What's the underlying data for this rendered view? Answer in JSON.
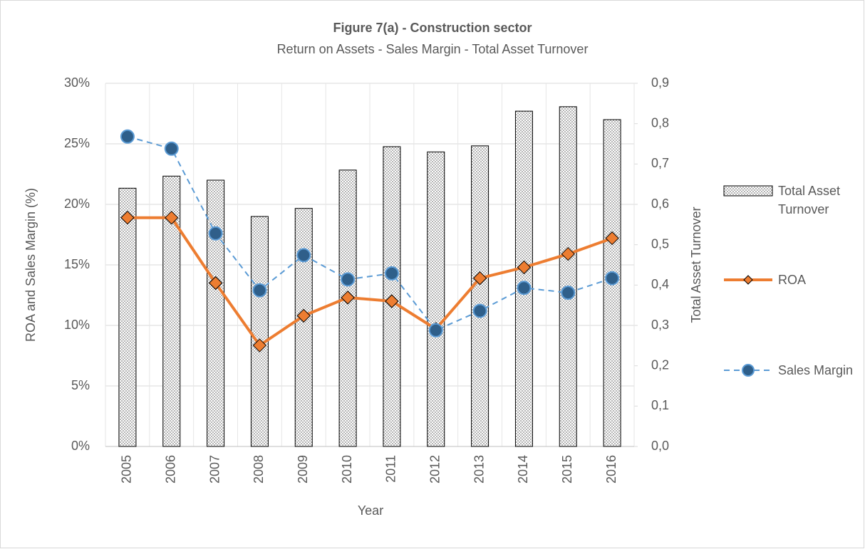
{
  "chart_data": {
    "type": "combo",
    "title": "Figure 7(a) - Construction sector",
    "subtitle": "Return on Assets - Sales Margin - Total Asset Turnover",
    "x_label": "Year",
    "y_label": "ROA and Sales Margin (%)",
    "y2_label": "Total Asset Turnover",
    "categories": [
      "2005",
      "2006",
      "2007",
      "2008",
      "2009",
      "2010",
      "2011",
      "2012",
      "2013",
      "2014",
      "2015",
      "2016"
    ],
    "series": [
      {
        "name": "Total Asset Turnover",
        "type": "bar",
        "axis": "y2",
        "color": "#7f7f7f",
        "values": [
          0.64,
          0.67,
          0.66,
          0.57,
          0.59,
          0.685,
          0.743,
          0.73,
          0.745,
          0.831,
          0.842,
          0.81
        ]
      },
      {
        "name": "ROA",
        "type": "line",
        "marker": "diamond",
        "color": "#ed7d31",
        "values": [
          18.9,
          18.9,
          13.5,
          8.35,
          10.8,
          12.3,
          12.0,
          9.7,
          13.9,
          14.8,
          15.9,
          17.2
        ]
      },
      {
        "name": "Sales Margin",
        "type": "line",
        "marker": "circle",
        "dashed": true,
        "color": "#5b9bd5",
        "values": [
          25.6,
          24.6,
          17.6,
          12.9,
          15.8,
          13.8,
          14.3,
          9.6,
          11.2,
          13.1,
          12.7,
          13.9
        ]
      }
    ],
    "ylim": [
      0,
      30
    ],
    "yticks": [
      {
        "value": 0,
        "label": "0%"
      },
      {
        "value": 5,
        "label": "5%"
      },
      {
        "value": 10,
        "label": "10%"
      },
      {
        "value": 15,
        "label": "15%"
      },
      {
        "value": 20,
        "label": "20%"
      },
      {
        "value": 25,
        "label": "25%"
      },
      {
        "value": 30,
        "label": "30%"
      }
    ],
    "y2lim": [
      0,
      0.9
    ],
    "y2ticks": [
      {
        "value": 0,
        "label": "0,0"
      },
      {
        "value": 0.1,
        "label": "0,1"
      },
      {
        "value": 0.2,
        "label": "0,2"
      },
      {
        "value": 0.3,
        "label": "0,3"
      },
      {
        "value": 0.4,
        "label": "0,4"
      },
      {
        "value": 0.5,
        "label": "0,5"
      },
      {
        "value": 0.6,
        "label": "0,6"
      },
      {
        "value": 0.7,
        "label": "0,7"
      },
      {
        "value": 0.8,
        "label": "0,8"
      },
      {
        "value": 0.9,
        "label": "0,9"
      }
    ],
    "grid": true,
    "legend": "right"
  }
}
